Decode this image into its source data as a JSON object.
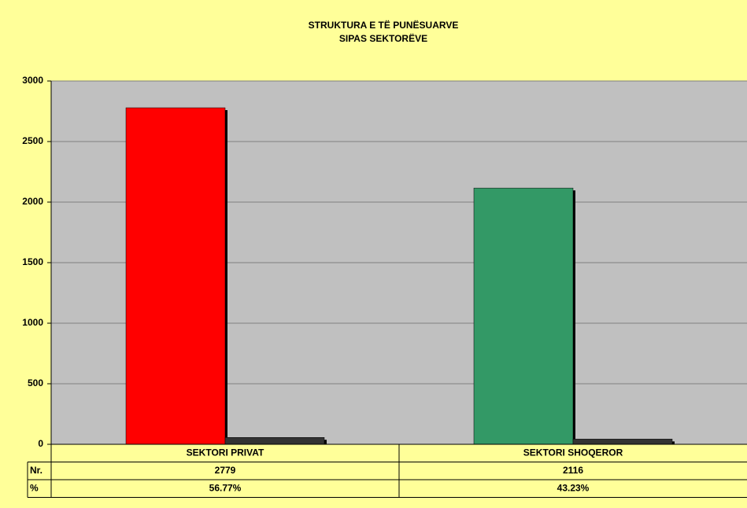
{
  "chart_data": {
    "type": "bar",
    "title": [
      "STRUKTURA E TË PUNËSUARVE",
      "SIPAS SEKTORËVE"
    ],
    "categories": [
      "SEKTORI PRIVAT",
      "SEKTORI SHOQEROR"
    ],
    "series": [
      {
        "name": "Nr.",
        "colors": [
          "#ff0000",
          "#339966"
        ],
        "values": [
          2779,
          2116
        ]
      },
      {
        "name": "%",
        "color": "#333333",
        "values": [
          56.77,
          43.23
        ],
        "value_labels": [
          "56.77%",
          "43.23%"
        ]
      }
    ],
    "ylim": [
      0,
      3000
    ],
    "yticks": [
      0,
      500,
      1000,
      1500,
      2000,
      2500,
      3000
    ],
    "grid": true
  }
}
